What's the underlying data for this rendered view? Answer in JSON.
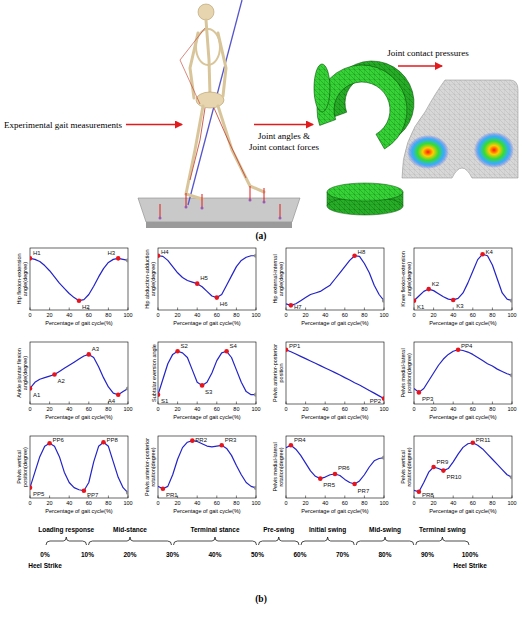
{
  "figure_a": {
    "arrow_labels": [
      [
        "Experimental gait measurements"
      ],
      [
        "Joint angles &",
        "Joint contact forces"
      ],
      [
        "Joint contact pressures"
      ]
    ],
    "panel_label": "(a)"
  },
  "chart_data": [
    {
      "type": "line",
      "y_label": "Hip flexion-extension angle(degree)",
      "x_label": "Percentage of gait cycle(%)",
      "color": "#2323c8",
      "tick_labels": "x",
      "x": [
        0,
        5,
        10,
        15,
        20,
        25,
        30,
        35,
        40,
        45,
        50,
        55,
        60,
        65,
        70,
        75,
        80,
        85,
        90,
        95,
        100
      ],
      "values": [
        30,
        29,
        27,
        23,
        18,
        12,
        6,
        1,
        -4,
        -8,
        -11,
        -10,
        -5,
        3,
        12,
        20,
        26,
        29,
        30,
        29,
        28
      ],
      "xlim": [
        0,
        100
      ],
      "xticks": [
        0,
        20,
        40,
        60,
        80,
        100
      ],
      "ylim": [
        -20,
        40
      ],
      "annotations": [
        {
          "text": "H1",
          "x": 0,
          "y": 30
        },
        {
          "text": "H2",
          "x": 50,
          "y": -11
        },
        {
          "text": "H3",
          "x": 90,
          "y": 30
        }
      ]
    },
    {
      "type": "line",
      "y_label": "Hip abduction-adduction angle(degree)",
      "x_label": "Percentage of gait cycle(%)",
      "color": "#2323c8",
      "tick_labels": "x",
      "x": [
        0,
        5,
        10,
        15,
        20,
        25,
        30,
        35,
        40,
        45,
        50,
        55,
        60,
        65,
        70,
        75,
        80,
        85,
        90,
        95,
        100
      ],
      "values": [
        7.5,
        7.3,
        6,
        4,
        2,
        0.5,
        -0.5,
        -1,
        -1.5,
        -2.5,
        -4,
        -5.5,
        -6,
        -5,
        -2,
        1,
        4,
        6,
        7,
        7.5,
        7.5
      ],
      "xlim": [
        0,
        100
      ],
      "xticks": [
        0,
        20,
        40,
        60,
        80,
        100
      ],
      "ylim": [
        -10,
        10
      ],
      "annotations": [
        {
          "text": "H4",
          "x": 0,
          "y": 7.5
        },
        {
          "text": "H5",
          "x": 40,
          "y": -1.5
        },
        {
          "text": "H6",
          "x": 60,
          "y": -6
        }
      ]
    },
    {
      "type": "line",
      "y_label": "Hip external-internal angle(degree)",
      "x_label": "Percentage of gait cycle(%)",
      "color": "#2323c8",
      "tick_labels": "x",
      "x": [
        0,
        5,
        10,
        15,
        20,
        25,
        30,
        35,
        40,
        45,
        50,
        55,
        60,
        65,
        70,
        75,
        80,
        85,
        90,
        95,
        100
      ],
      "values": [
        -8,
        -8.5,
        -8,
        -7,
        -6,
        -5,
        -4.5,
        -4,
        -3,
        -2,
        0,
        2,
        4,
        6,
        7.5,
        7.3,
        5,
        2,
        -2,
        -5,
        -7
      ],
      "xlim": [
        0,
        100
      ],
      "xticks": [
        0,
        20,
        40,
        60,
        80,
        100
      ],
      "ylim": [
        -10,
        10
      ],
      "annotations": [
        {
          "text": "H7",
          "x": 5,
          "y": -8.5
        },
        {
          "text": "H8",
          "x": 70,
          "y": 7.5
        }
      ]
    },
    {
      "type": "line",
      "y_label": "Knee flexion-extension angle(degree)",
      "x_label": "Percentage of gait cycle(%)",
      "color": "#2323c8",
      "tick_labels": "x",
      "x": [
        0,
        5,
        10,
        15,
        20,
        25,
        30,
        35,
        40,
        45,
        50,
        55,
        60,
        65,
        70,
        75,
        80,
        85,
        90,
        95,
        100
      ],
      "values": [
        2,
        8,
        14,
        17,
        15,
        11,
        7,
        4,
        3,
        5,
        12,
        25,
        40,
        55,
        62,
        60,
        48,
        30,
        12,
        4,
        2
      ],
      "xlim": [
        0,
        100
      ],
      "xticks": [
        0,
        20,
        40,
        60,
        80,
        100
      ],
      "ylim": [
        -10,
        70
      ],
      "annotations": [
        {
          "text": "K1",
          "x": 0,
          "y": 2
        },
        {
          "text": "K2",
          "x": 15,
          "y": 17
        },
        {
          "text": "K3",
          "x": 40,
          "y": 3
        },
        {
          "text": "K4",
          "x": 70,
          "y": 62
        }
      ]
    },
    {
      "type": "line",
      "y_label": "Ankle plantar flexion angle(degree)",
      "x_label": "Percentage of gait cycle(%)",
      "color": "#2323c8",
      "tick_labels": "x",
      "x": [
        0,
        5,
        10,
        15,
        20,
        25,
        30,
        35,
        40,
        45,
        50,
        55,
        60,
        65,
        70,
        75,
        80,
        85,
        90,
        95,
        100
      ],
      "values": [
        -10,
        -6,
        -4,
        -3,
        -2,
        -1,
        1,
        3,
        5,
        7,
        9,
        11,
        12,
        10,
        4,
        -3,
        -9,
        -13,
        -14,
        -12,
        -10
      ],
      "xlim": [
        0,
        100
      ],
      "xticks": [
        0,
        20,
        40,
        60,
        80,
        100
      ],
      "ylim": [
        -20,
        20
      ],
      "annotations": [
        {
          "text": "A1",
          "x": 0,
          "y": -10
        },
        {
          "text": "A2",
          "x": 25,
          "y": -1
        },
        {
          "text": "A3",
          "x": 60,
          "y": 12
        },
        {
          "text": "A4",
          "x": 90,
          "y": -14
        }
      ]
    },
    {
      "type": "line",
      "y_label": "Subtalar eversion angle",
      "x_label": "Percentage of gait cycle(%)",
      "color": "#2323c8",
      "tick_labels": "x",
      "x": [
        0,
        5,
        10,
        15,
        20,
        25,
        30,
        35,
        40,
        45,
        50,
        55,
        60,
        65,
        70,
        75,
        80,
        85,
        90,
        95,
        100
      ],
      "values": [
        -7,
        -2,
        3,
        6,
        7,
        6.5,
        5,
        1,
        -3,
        -4,
        -3,
        0,
        4,
        6.5,
        7,
        5,
        1,
        -3,
        -6,
        -7,
        -7
      ],
      "xlim": [
        0,
        100
      ],
      "xticks": [
        0,
        20,
        40,
        60,
        80,
        100
      ],
      "ylim": [
        -10,
        10
      ],
      "annotations": [
        {
          "text": "S1",
          "x": 0,
          "y": -7
        },
        {
          "text": "S2",
          "x": 20,
          "y": 7
        },
        {
          "text": "S3",
          "x": 45,
          "y": -4
        },
        {
          "text": "S4",
          "x": 70,
          "y": 7
        }
      ]
    },
    {
      "type": "line",
      "y_label": "Pelvis anterior-posterior position",
      "x_label": "Percentage of gait cycle(%)",
      "color": "#2323c8",
      "tick_labels": "x",
      "x": [
        0,
        5,
        10,
        15,
        20,
        25,
        30,
        35,
        40,
        45,
        50,
        55,
        60,
        65,
        70,
        75,
        80,
        85,
        90,
        95,
        100
      ],
      "values": [
        1.2,
        1.15,
        1.09,
        1.03,
        0.97,
        0.91,
        0.85,
        0.79,
        0.73,
        0.67,
        0.61,
        0.55,
        0.48,
        0.42,
        0.35,
        0.29,
        0.22,
        0.15,
        0.08,
        0.01,
        -0.06
      ],
      "xlim": [
        0,
        100
      ],
      "xticks": [
        0,
        20,
        40,
        60,
        80,
        100
      ],
      "ylim": [
        -0.2,
        1.4
      ],
      "annotations": [
        {
          "text": "PP1",
          "x": 0,
          "y": 1.2
        },
        {
          "text": "PP2",
          "x": 100,
          "y": -0.06
        }
      ]
    },
    {
      "type": "line",
      "y_label": "Pelvis medial-lateral position(degree)",
      "x_label": "Percentage of gait cycle(%)",
      "color": "#2323c8",
      "tick_labels": "x",
      "x": [
        0,
        5,
        10,
        15,
        20,
        25,
        30,
        35,
        40,
        45,
        50,
        55,
        60,
        65,
        70,
        75,
        80,
        85,
        90,
        95,
        100
      ],
      "values": [
        -0.02,
        -0.025,
        -0.02,
        -0.01,
        0,
        0.01,
        0.018,
        0.024,
        0.028,
        0.03,
        0.029,
        0.027,
        0.024,
        0.02,
        0.016,
        0.012,
        0.009,
        0.005,
        0.002,
        -0.001,
        -0.003
      ],
      "xlim": [
        0,
        100
      ],
      "xticks": [
        0,
        20,
        40,
        60,
        80,
        100
      ],
      "ylim": [
        -0.04,
        0.04
      ],
      "annotations": [
        {
          "text": "PP3",
          "x": 5,
          "y": -0.025
        },
        {
          "text": "PP4",
          "x": 45,
          "y": 0.03
        }
      ]
    },
    {
      "type": "line",
      "y_label": "Pelvis vertical position(degree)",
      "x_label": "Percentage of gait cycle(%)",
      "color": "#2323c8",
      "tick_labels": "x",
      "x": [
        0,
        5,
        10,
        15,
        20,
        25,
        30,
        35,
        40,
        45,
        50,
        55,
        60,
        65,
        70,
        75,
        80,
        85,
        90,
        95,
        100
      ],
      "values": [
        -2,
        -0.5,
        1,
        2,
        2.3,
        2,
        1,
        -0.5,
        -1.5,
        -2,
        -2.2,
        -2.3,
        -1.5,
        0.5,
        2,
        2.4,
        2,
        0.5,
        -1,
        -2,
        -2.5
      ],
      "xlim": [
        0,
        100
      ],
      "xticks": [
        0,
        20,
        40,
        60,
        80,
        100
      ],
      "ylim": [
        -3,
        3
      ],
      "annotations": [
        {
          "text": "PP5",
          "x": 0,
          "y": -2
        },
        {
          "text": "PP6",
          "x": 20,
          "y": 2.3
        },
        {
          "text": "PP7",
          "x": 55,
          "y": -2.3
        },
        {
          "text": "PP8",
          "x": 75,
          "y": 2.4
        }
      ]
    },
    {
      "type": "line",
      "y_label": "Pelvis anterior-posterior rotation(degree)",
      "x_label": "Percentage of gait cycle(%)",
      "color": "#2323c8",
      "tick_labels": "x",
      "x": [
        0,
        5,
        10,
        15,
        20,
        25,
        30,
        35,
        40,
        45,
        50,
        55,
        60,
        65,
        70,
        75,
        80,
        85,
        90,
        95,
        100
      ],
      "values": [
        -2.5,
        -2.8,
        -2.5,
        -1,
        1,
        2.5,
        3.2,
        3.4,
        3.3,
        3,
        2.7,
        2.6,
        2.7,
        2.8,
        2.4,
        1.5,
        0.2,
        -1,
        -2,
        -2.5,
        -2.7
      ],
      "xlim": [
        0,
        100
      ],
      "xticks": [
        0,
        20,
        40,
        60,
        80,
        100
      ],
      "ylim": [
        -4,
        4
      ],
      "annotations": [
        {
          "text": "PR1",
          "x": 5,
          "y": -2.8
        },
        {
          "text": "PR2",
          "x": 35,
          "y": 3.4
        },
        {
          "text": "PR3",
          "x": 65,
          "y": 2.8
        }
      ]
    },
    {
      "type": "line",
      "y_label": "Pelvis medial-lateral rotation(degree)",
      "x_label": "Percentage of gait cycle(%)",
      "color": "#2323c8",
      "tick_labels": "x",
      "x": [
        0,
        5,
        10,
        15,
        20,
        25,
        30,
        35,
        40,
        45,
        50,
        55,
        60,
        65,
        70,
        75,
        80,
        85,
        90,
        95,
        100
      ],
      "values": [
        2.5,
        2.8,
        2.3,
        1.5,
        0.5,
        -0.5,
        -1.2,
        -1.5,
        -1.3,
        -1,
        -0.9,
        -1.1,
        -1.6,
        -2,
        -2.2,
        -1.8,
        -1,
        0,
        0.8,
        1.1,
        1.2
      ],
      "xlim": [
        0,
        100
      ],
      "xticks": [
        0,
        20,
        40,
        60,
        80,
        100
      ],
      "ylim": [
        -4,
        4
      ],
      "annotations": [
        {
          "text": "PR4",
          "x": 5,
          "y": 2.8
        },
        {
          "text": "PR5",
          "x": 35,
          "y": -1.5
        },
        {
          "text": "PR6",
          "x": 50,
          "y": -0.9
        },
        {
          "text": "PR7",
          "x": 70,
          "y": -2.2
        }
      ]
    },
    {
      "type": "line",
      "y_label": "Pelvis vertical rotation(degree)",
      "x_label": "Percentage of gait cycle(%)",
      "color": "#2323c8",
      "tick_labels": "x",
      "x": [
        0,
        5,
        10,
        15,
        20,
        25,
        30,
        35,
        40,
        45,
        50,
        55,
        60,
        65,
        70,
        75,
        80,
        85,
        90,
        95,
        100
      ],
      "values": [
        -4.5,
        -4.8,
        -3,
        -1,
        0,
        -0.3,
        -0.7,
        -0.3,
        1,
        2.5,
        3.8,
        4.5,
        4.7,
        4.2,
        3.5,
        2.5,
        1.5,
        0.5,
        -0.5,
        -1.5,
        -2
      ],
      "xlim": [
        0,
        100
      ],
      "xticks": [
        0,
        20,
        40,
        60,
        80,
        100
      ],
      "ylim": [
        -6,
        6
      ],
      "annotations": [
        {
          "text": "PR8",
          "x": 5,
          "y": -4.8
        },
        {
          "text": "PR9",
          "x": 20,
          "y": 0
        },
        {
          "text": "PR10",
          "x": 30,
          "y": -0.7
        },
        {
          "text": "PR11",
          "x": 60,
          "y": 4.7
        }
      ]
    }
  ],
  "figure_b": {
    "gait_phases": [
      {
        "name": "Loading response",
        "start": 0,
        "end": 10
      },
      {
        "name": "Mid-stance",
        "start": 10,
        "end": 30
      },
      {
        "name": "Terminal stance",
        "start": 30,
        "end": 50
      },
      {
        "name": "Pre-swing",
        "start": 50,
        "end": 60
      },
      {
        "name": "Initial swing",
        "start": 60,
        "end": 73
      },
      {
        "name": "Mid-swing",
        "start": 73,
        "end": 87
      },
      {
        "name": "Terminal swing",
        "start": 87,
        "end": 100
      }
    ],
    "xlim": [
      0,
      100
    ],
    "ticks": [
      {
        "value": 0,
        "label": "0%"
      },
      {
        "value": 10,
        "label": "10%"
      },
      {
        "value": 20,
        "label": "20%"
      },
      {
        "value": 30,
        "label": "30%"
      },
      {
        "value": 40,
        "label": "40%"
      },
      {
        "value": 50,
        "label": "50%"
      },
      {
        "value": 60,
        "label": "60%"
      },
      {
        "value": 70,
        "label": "70%"
      },
      {
        "value": 80,
        "label": "80%"
      },
      {
        "value": 90,
        "label": "90%"
      },
      {
        "value": 100,
        "label": "100%"
      }
    ],
    "events": [
      {
        "value": 0,
        "label": "Heel Strike"
      },
      {
        "value": 100,
        "label": "Heel Strike"
      }
    ],
    "panel_label": "(b)"
  }
}
